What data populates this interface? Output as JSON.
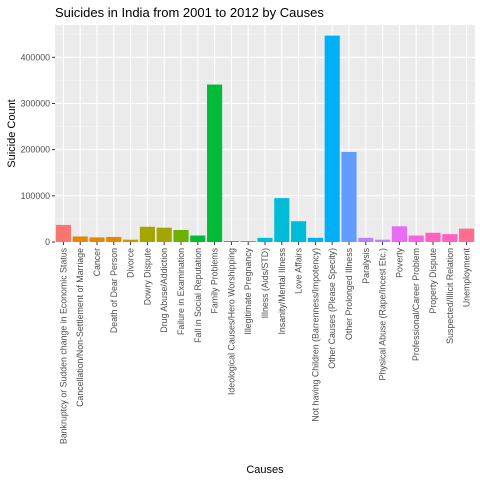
{
  "chart_data": {
    "type": "bar",
    "title": "Suicides in India from 2001 to 2012 by Causes",
    "xlabel": "Causes",
    "ylabel": "Suicide Count",
    "ylim": [
      0,
      470000
    ],
    "yticks": [
      0,
      100000,
      200000,
      300000,
      400000
    ],
    "grid": true,
    "legend": "none",
    "categories": [
      "Bankruptcy or Sudden change in Economic Status",
      "Cancellation/Non-Settlement of Marriage",
      "Cancer",
      "Death of Dear Person",
      "Divorce",
      "Dowry Dispute",
      "Drug Abuse/Addiction",
      "Failure in Examination",
      "Fall in Social Reputation",
      "Family Problems",
      "Ideological Causes/Hero Worshipping",
      "Illegitimate Pregnancy",
      "Illness (Aids/STD)",
      "Insanity/Mental Illness",
      "Love Affairs",
      "Not having Children (Barrenness/Impotency)",
      "Other Causes (Please Specity)",
      "Other Prolonged Illness",
      "Paralysis",
      "Physical Abuse (Rape/Incest Etc.)",
      "Poverty",
      "Professional/Career Problem",
      "Property Dispute",
      "Suspected/Illicit Relation",
      "Unemployment"
    ],
    "values": [
      37000,
      12000,
      10000,
      11000,
      5000,
      33000,
      31000,
      26000,
      14000,
      341000,
      2000,
      2000,
      9000,
      95000,
      45000,
      9000,
      447000,
      195000,
      9000,
      5000,
      34000,
      14000,
      20000,
      17000,
      29000
    ],
    "colors": [
      "#F8766D",
      "#E58700",
      "#E58700",
      "#E58700",
      "#C99800",
      "#A3A500",
      "#A3A500",
      "#6BB100",
      "#00BA38",
      "#00BA38",
      "#00BF7D",
      "#00C0AF",
      "#00BCD8",
      "#00BCD8",
      "#00BCD8",
      "#00B0F6",
      "#00B0F6",
      "#619CFF",
      "#B983FF",
      "#B983FF",
      "#E76BF3",
      "#F564E3",
      "#FF61C3",
      "#FF61C3",
      "#FF6C91"
    ]
  }
}
